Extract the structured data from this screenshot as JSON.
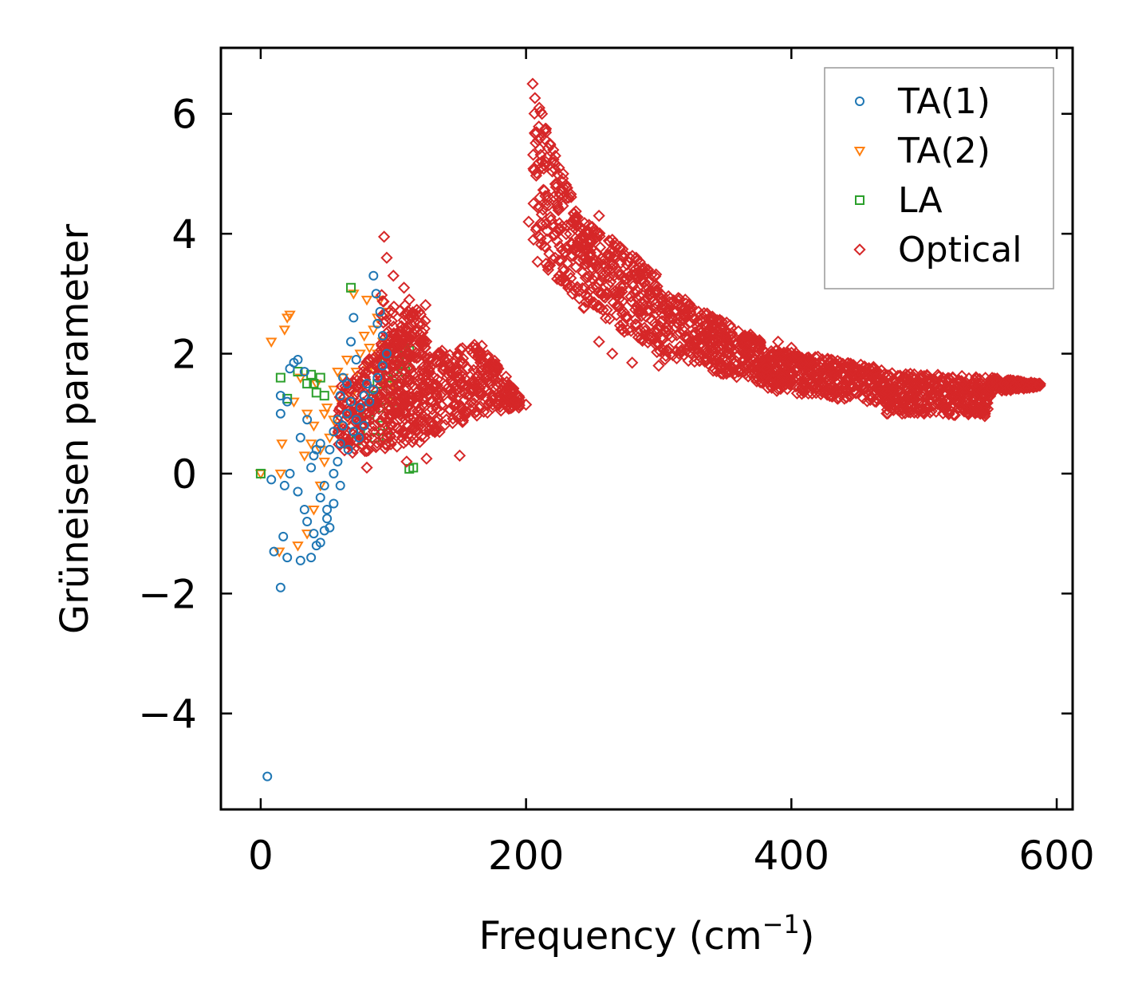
{
  "chart_data": {
    "type": "scatter",
    "title": "",
    "xlabel": "Frequency (cm",
    "xlabel_unit_sup": "−1",
    "xlabel_close": ")",
    "ylabel": "Grüneisen parameter",
    "xlim": [
      -30,
      612
    ],
    "ylim": [
      -5.6,
      7.1
    ],
    "xticks": [
      0,
      200,
      400,
      600
    ],
    "xtick_labels": [
      "0",
      "200",
      "400",
      "600"
    ],
    "yticks": [
      -4,
      -2,
      0,
      2,
      4,
      6
    ],
    "ytick_labels": [
      "−4",
      "−2",
      "0",
      "2",
      "4",
      "6"
    ],
    "grid": false,
    "legend_position": "top-right",
    "series": [
      {
        "name": "TA(1)",
        "marker": "circle",
        "color": "#1f77b4",
        "points": [
          [
            5,
            -5.05
          ],
          [
            15,
            -1.9
          ],
          [
            10,
            -1.3
          ],
          [
            17,
            -1.05
          ],
          [
            20,
            -1.4
          ],
          [
            30,
            -1.45
          ],
          [
            38,
            -1.4
          ],
          [
            8,
            -0.1
          ],
          [
            18,
            -0.2
          ],
          [
            22,
            0.0
          ],
          [
            28,
            -0.3
          ],
          [
            33,
            -0.6
          ],
          [
            35,
            -0.8
          ],
          [
            42,
            -1.2
          ],
          [
            15,
            1.0
          ],
          [
            15,
            1.3
          ],
          [
            20,
            1.2
          ],
          [
            25,
            1.85
          ],
          [
            28,
            1.9
          ],
          [
            22,
            1.75
          ],
          [
            33,
            1.7
          ],
          [
            30,
            0.6
          ],
          [
            35,
            0.9
          ],
          [
            40,
            0.3
          ],
          [
            45,
            0.5
          ],
          [
            48,
            -0.2
          ],
          [
            50,
            -0.6
          ],
          [
            52,
            -0.9
          ],
          [
            55,
            0.0
          ],
          [
            58,
            0.2
          ],
          [
            60,
            0.5
          ],
          [
            62,
            0.8
          ],
          [
            65,
            1.0
          ],
          [
            68,
            1.2
          ],
          [
            70,
            0.7
          ],
          [
            72,
            0.9
          ],
          [
            75,
            1.1
          ],
          [
            78,
            1.3
          ],
          [
            80,
            1.5
          ],
          [
            82,
            1.2
          ],
          [
            85,
            1.4
          ],
          [
            88,
            1.6
          ],
          [
            65,
            1.5
          ],
          [
            68,
            2.2
          ],
          [
            70,
            2.6
          ],
          [
            72,
            1.9
          ],
          [
            85,
            3.3
          ],
          [
            87,
            3.0
          ],
          [
            88,
            2.5
          ],
          [
            90,
            2.7
          ],
          [
            92,
            2.3
          ],
          [
            95,
            2.0
          ],
          [
            45,
            -0.4
          ],
          [
            50,
            -0.75
          ],
          [
            55,
            -0.5
          ],
          [
            60,
            -0.2
          ],
          [
            40,
            -1.0
          ],
          [
            45,
            -1.15
          ],
          [
            48,
            -0.95
          ],
          [
            38,
            0.1
          ],
          [
            42,
            0.4
          ],
          [
            60,
            1.3
          ],
          [
            62,
            1.6
          ],
          [
            58,
            0.9
          ],
          [
            55,
            0.7
          ],
          [
            52,
            0.4
          ],
          [
            66,
            0.4
          ],
          [
            74,
            0.6
          ],
          [
            78,
            0.8
          ],
          [
            92,
            1.8
          ]
        ]
      },
      {
        "name": "TA(2)",
        "marker": "triangle-down",
        "color": "#ff7f0e",
        "points": [
          [
            0,
            0.0
          ],
          [
            15,
            0.0
          ],
          [
            8,
            2.2
          ],
          [
            18,
            2.4
          ],
          [
            20,
            2.6
          ],
          [
            22,
            2.65
          ],
          [
            25,
            1.2
          ],
          [
            30,
            1.6
          ],
          [
            35,
            1.0
          ],
          [
            38,
            0.5
          ],
          [
            40,
            0.8
          ],
          [
            45,
            0.4
          ],
          [
            50,
            1.1
          ],
          [
            55,
            1.4
          ],
          [
            58,
            0.8
          ],
          [
            60,
            1.2
          ],
          [
            62,
            1.6
          ],
          [
            65,
            1.9
          ],
          [
            68,
            1.3
          ],
          [
            70,
            1.0
          ],
          [
            72,
            1.7
          ],
          [
            75,
            2.0
          ],
          [
            78,
            2.3
          ],
          [
            80,
            1.8
          ],
          [
            82,
            2.1
          ],
          [
            85,
            2.4
          ],
          [
            88,
            2.6
          ],
          [
            90,
            2.9
          ],
          [
            92,
            2.2
          ],
          [
            95,
            2.7
          ],
          [
            98,
            1.9
          ],
          [
            100,
            1.5
          ],
          [
            70,
            3.0
          ],
          [
            80,
            2.9
          ],
          [
            88,
            2.0
          ],
          [
            16,
            0.5
          ],
          [
            14,
            -1.3
          ],
          [
            28,
            -1.2
          ],
          [
            35,
            -1.0
          ],
          [
            40,
            -0.6
          ],
          [
            45,
            -0.2
          ],
          [
            48,
            0.2
          ],
          [
            52,
            0.6
          ],
          [
            55,
            0.9
          ],
          [
            33,
            0.3
          ],
          [
            42,
            1.5
          ],
          [
            48,
            1.0
          ],
          [
            64,
            0.5
          ],
          [
            67,
            0.9
          ],
          [
            74,
            1.1
          ],
          [
            77,
            1.5
          ],
          [
            83,
            1.3
          ],
          [
            86,
            1.7
          ],
          [
            93,
            1.5
          ],
          [
            96,
            1.2
          ],
          [
            58,
            1.7
          ]
        ]
      },
      {
        "name": "LA",
        "marker": "square",
        "color": "#2ca02c",
        "points": [
          [
            0,
            0.0
          ],
          [
            15,
            1.6
          ],
          [
            20,
            1.25
          ],
          [
            28,
            1.7
          ],
          [
            35,
            1.5
          ],
          [
            38,
            1.65
          ],
          [
            40,
            1.5
          ],
          [
            42,
            1.35
          ],
          [
            45,
            1.6
          ],
          [
            48,
            1.3
          ],
          [
            68,
            3.1
          ],
          [
            72,
            0.55
          ],
          [
            75,
            0.7
          ],
          [
            80,
            1.0
          ],
          [
            85,
            1.3
          ],
          [
            88,
            1.5
          ],
          [
            90,
            1.1
          ],
          [
            92,
            0.8
          ],
          [
            95,
            0.6
          ],
          [
            98,
            1.4
          ],
          [
            100,
            1.7
          ],
          [
            102,
            2.0
          ],
          [
            105,
            1.8
          ],
          [
            108,
            2.1
          ],
          [
            110,
            1.9
          ],
          [
            112,
            2.05
          ],
          [
            115,
            0.1
          ],
          [
            112,
            0.08
          ],
          [
            82,
            0.9
          ],
          [
            86,
            0.6
          ],
          [
            94,
            1.9
          ],
          [
            96,
            1.6
          ],
          [
            99,
            1.2
          ],
          [
            104,
            1.5
          ],
          [
            109,
            1.7
          ]
        ]
      },
      {
        "name": "Optical",
        "marker": "diamond",
        "color": "#d62728",
        "dense_bands": [
          {
            "x": [
              58,
              125
            ],
            "y_low": [
              0.3,
              0.5
            ],
            "y_high": [
              1.4,
              2.9
            ]
          },
          {
            "x": [
              90,
              125
            ],
            "y_low": [
              0.5,
              0.6
            ],
            "y_high": [
              3.2,
              2.6
            ]
          },
          {
            "x": [
              125,
              168
            ],
            "y_low": [
              0.6,
              1.0
            ],
            "y_high": [
              2.0,
              2.2
            ]
          },
          {
            "x": [
              168,
              195
            ],
            "y_low": [
              1.0,
              1.1
            ],
            "y_high": [
              2.2,
              1.3
            ]
          },
          {
            "x": [
              205,
              240
            ],
            "y_low": [
              3.6,
              2.9
            ],
            "y_high": [
              6.4,
              4.3
            ]
          },
          {
            "x": [
              240,
              300
            ],
            "y_low": [
              2.8,
              2.0
            ],
            "y_high": [
              4.3,
              3.3
            ]
          },
          {
            "x": [
              300,
              380
            ],
            "y_low": [
              1.9,
              1.5
            ],
            "y_high": [
              3.1,
              2.2
            ]
          },
          {
            "x": [
              380,
              470
            ],
            "y_low": [
              1.4,
              1.15
            ],
            "y_high": [
              2.1,
              1.75
            ]
          },
          {
            "x": [
              470,
              550
            ],
            "y_low": [
              1.0,
              0.95
            ],
            "y_high": [
              1.7,
              1.6
            ]
          },
          {
            "x": [
              550,
              588
            ],
            "y_low": [
              1.35,
              1.45
            ],
            "y_high": [
              1.6,
              1.5
            ]
          }
        ],
        "points": [
          [
            93,
            3.95
          ],
          [
            95,
            3.6
          ],
          [
            100,
            3.3
          ],
          [
            108,
            3.1
          ],
          [
            112,
            2.9
          ],
          [
            205,
            6.5
          ],
          [
            210,
            6.1
          ],
          [
            212,
            6.0
          ],
          [
            215,
            5.75
          ],
          [
            218,
            5.5
          ],
          [
            222,
            5.3
          ],
          [
            228,
            5.0
          ],
          [
            232,
            4.6
          ],
          [
            202,
            4.2
          ],
          [
            208,
            4.1
          ],
          [
            215,
            3.5
          ],
          [
            225,
            3.3
          ],
          [
            235,
            3.0
          ],
          [
            255,
            4.3
          ],
          [
            265,
            3.9
          ],
          [
            278,
            3.6
          ],
          [
            283,
            3.6
          ],
          [
            255,
            2.2
          ],
          [
            265,
            2.0
          ],
          [
            280,
            1.85
          ],
          [
            300,
            1.8
          ],
          [
            330,
            2.7
          ],
          [
            340,
            2.55
          ],
          [
            365,
            2.3
          ],
          [
            375,
            2.1
          ],
          [
            390,
            2.2
          ],
          [
            400,
            2.1
          ],
          [
            420,
            1.95
          ],
          [
            430,
            1.9
          ],
          [
            445,
            1.8
          ],
          [
            200,
            1.15
          ],
          [
            175,
            1.15
          ],
          [
            150,
            0.3
          ],
          [
            125,
            0.25
          ],
          [
            110,
            0.2
          ],
          [
            80,
            0.1
          ],
          [
            85,
            0.7
          ],
          [
            120,
            0.8
          ],
          [
            140,
            0.9
          ],
          [
            160,
            1.1
          ],
          [
            320,
            2.9
          ],
          [
            345,
            2.1
          ],
          [
            360,
            1.7
          ],
          [
            410,
            1.5
          ],
          [
            440,
            1.25
          ],
          [
            500,
            1.0
          ],
          [
            520,
            1.05
          ],
          [
            540,
            1.1
          ],
          [
            560,
            1.5
          ],
          [
            585,
            1.45
          ]
        ]
      }
    ]
  }
}
